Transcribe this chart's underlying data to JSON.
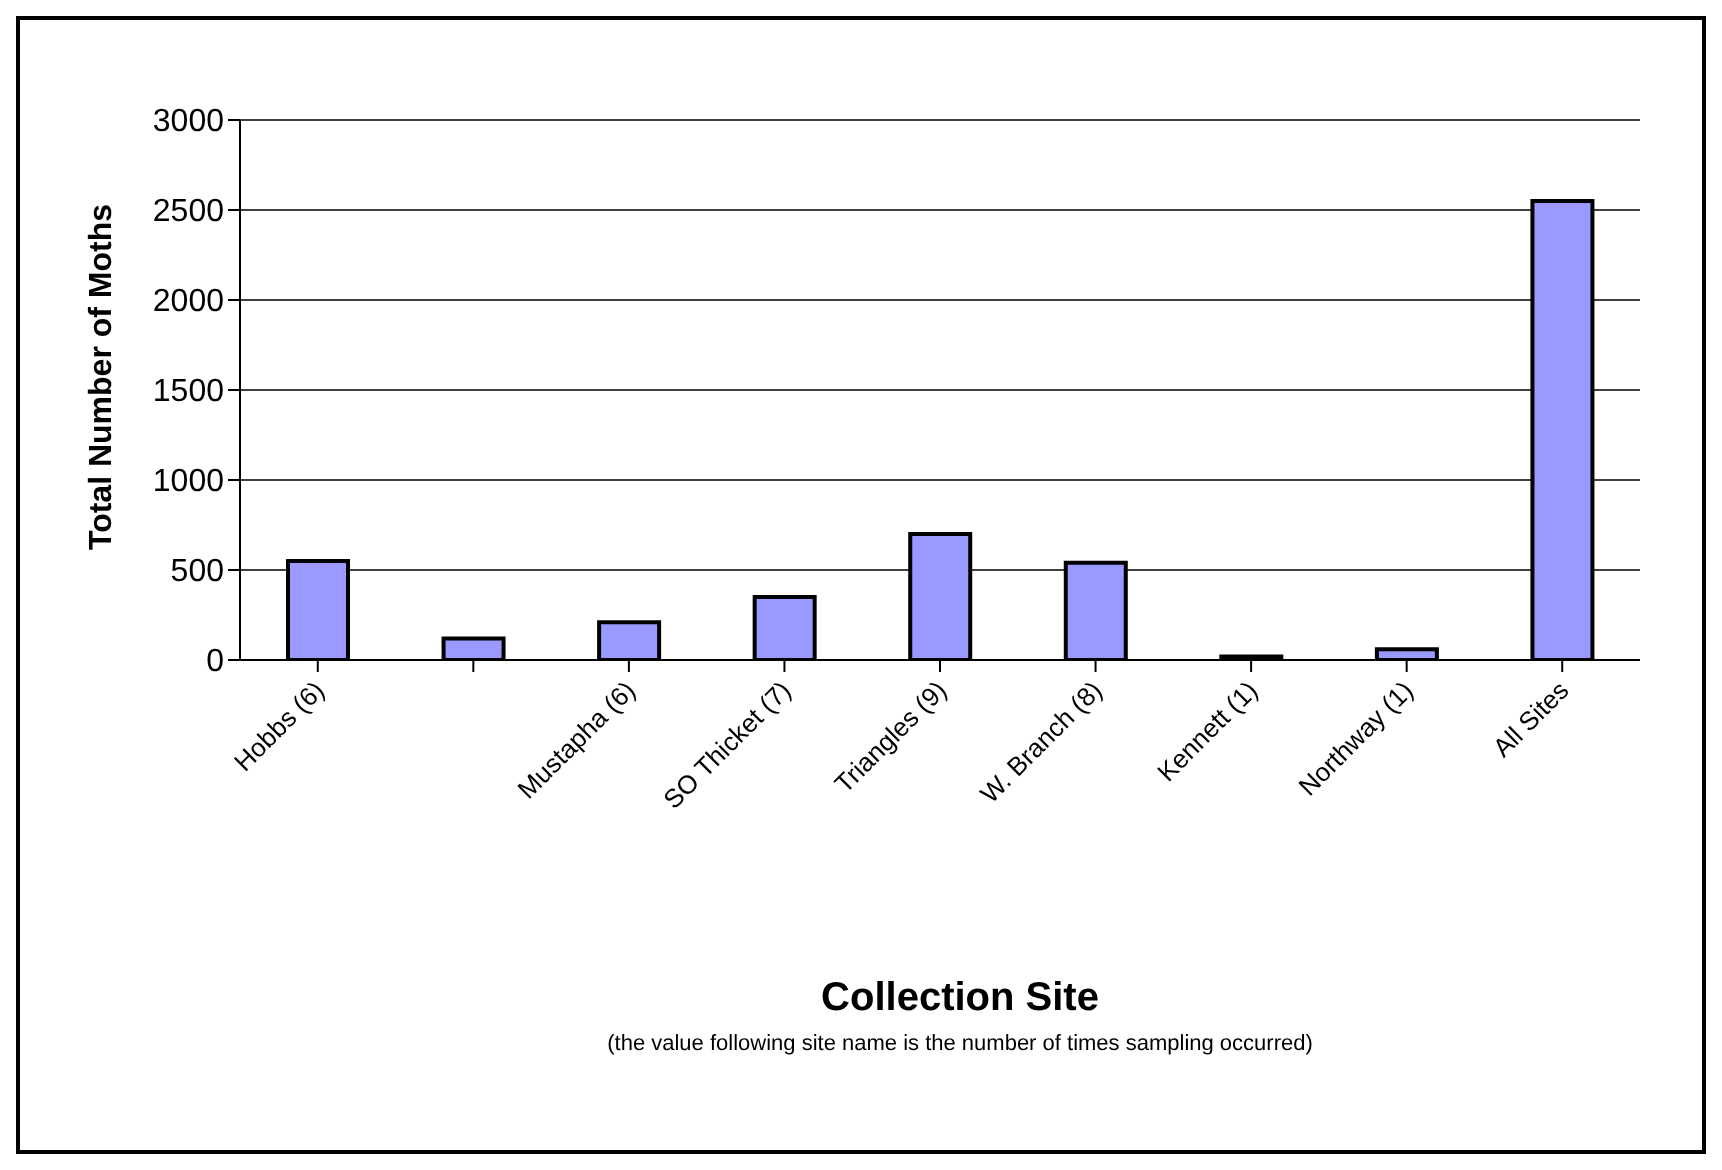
{
  "chart_data": {
    "type": "bar",
    "xlabel": "Collection Site",
    "ylabel": "Total Number of Moths",
    "annotations": [
      "(the value following site name is the number of times sampling occurred)"
    ],
    "categories": [
      "Hobbs (6)",
      null,
      "Mustapha (6)",
      "SO Thicket (7)",
      "Triangles (9)",
      "W. Branch (8)",
      "Kennett (1)",
      "Northway (1)",
      "All Sites"
    ],
    "values": [
      550,
      120,
      210,
      350,
      700,
      540,
      20,
      60,
      2550
    ],
    "color": "#9999ff",
    "ylim": [
      0,
      3000
    ],
    "yticks": [
      0,
      500,
      1000,
      1500,
      2000,
      2500,
      3000
    ],
    "grid": "y"
  }
}
